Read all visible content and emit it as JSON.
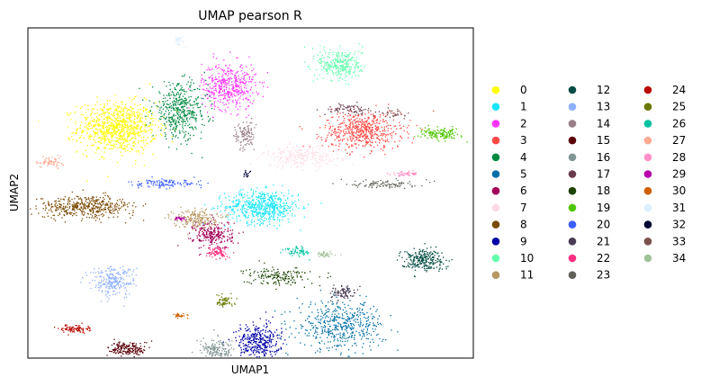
{
  "chart_data": {
    "type": "scatter",
    "title": "UMAP pearson R",
    "xlabel": "UMAP1",
    "ylabel": "UMAP2",
    "grid": false,
    "ticks": false,
    "legend_placement": "right",
    "legend_columns": 3,
    "xlim": [
      -10,
      10
    ],
    "ylim": [
      -10,
      10
    ],
    "clusters": [
      {
        "name": "0",
        "color": "#ffff00",
        "center": [
          -6.0,
          4.0
        ],
        "spread": [
          1.6,
          1.4
        ],
        "n": 900
      },
      {
        "name": "1",
        "color": "#1ce6ff",
        "center": [
          0.5,
          -0.8
        ],
        "spread": [
          1.5,
          0.9
        ],
        "n": 600
      },
      {
        "name": "2",
        "color": "#ff34ff",
        "center": [
          -1.0,
          6.5
        ],
        "spread": [
          1.1,
          1.3
        ],
        "n": 450
      },
      {
        "name": "3",
        "color": "#ff4a46",
        "center": [
          5.0,
          3.8
        ],
        "spread": [
          1.6,
          1.0
        ],
        "n": 550
      },
      {
        "name": "4",
        "color": "#008941",
        "center": [
          -3.2,
          5.0
        ],
        "spread": [
          1.1,
          1.5
        ],
        "n": 450
      },
      {
        "name": "5",
        "color": "#006fa6",
        "center": [
          4.0,
          -8.0
        ],
        "spread": [
          1.8,
          1.3
        ],
        "n": 500
      },
      {
        "name": "6",
        "color": "#a30059",
        "center": [
          -1.7,
          -2.5
        ],
        "spread": [
          0.8,
          0.8
        ],
        "n": 250
      },
      {
        "name": "7",
        "color": "#ffdbe5",
        "center": [
          2.3,
          2.2
        ],
        "spread": [
          1.6,
          0.6
        ],
        "n": 250
      },
      {
        "name": "8",
        "color": "#7a4900",
        "center": [
          -7.4,
          -0.8
        ],
        "spread": [
          2.0,
          0.6
        ],
        "n": 450
      },
      {
        "name": "9",
        "color": "#0000a6",
        "center": [
          0.3,
          -9.0
        ],
        "spread": [
          0.9,
          1.0
        ],
        "n": 350
      },
      {
        "name": "10",
        "color": "#63ffac",
        "center": [
          4.0,
          7.8
        ],
        "spread": [
          0.9,
          0.9
        ],
        "n": 300
      },
      {
        "name": "11",
        "color": "#b79762",
        "center": [
          -2.5,
          -1.5
        ],
        "spread": [
          0.9,
          0.5
        ],
        "n": 200
      },
      {
        "name": "12",
        "color": "#004d43",
        "center": [
          7.7,
          -4.0
        ],
        "spread": [
          0.9,
          0.6
        ],
        "n": 250
      },
      {
        "name": "13",
        "color": "#8fb0ff",
        "center": [
          -6.2,
          -5.3
        ],
        "spread": [
          0.9,
          0.8
        ],
        "n": 250
      },
      {
        "name": "14",
        "color": "#997d87",
        "center": [
          -0.3,
          3.5
        ],
        "spread": [
          0.4,
          0.8
        ],
        "n": 120
      },
      {
        "name": "15",
        "color": "#5a0007",
        "center": [
          -5.5,
          -9.4
        ],
        "spread": [
          0.8,
          0.4
        ],
        "n": 180
      },
      {
        "name": "16",
        "color": "#809693",
        "center": [
          -1.5,
          -9.5
        ],
        "spread": [
          0.7,
          0.6
        ],
        "n": 160
      },
      {
        "name": "17",
        "color": "#6a3a4c",
        "center": [
          4.4,
          5.1
        ],
        "spread": [
          1.0,
          0.3
        ],
        "n": 80
      },
      {
        "name": "18",
        "color": "#1b4400",
        "center": [
          1.2,
          -5.0
        ],
        "spread": [
          1.3,
          0.5
        ],
        "n": 160
      },
      {
        "name": "19",
        "color": "#4fc601",
        "center": [
          8.5,
          3.6
        ],
        "spread": [
          0.8,
          0.3
        ],
        "n": 150
      },
      {
        "name": "20",
        "color": "#3b5dff",
        "center": [
          -3.8,
          0.6
        ],
        "spread": [
          1.4,
          0.25
        ],
        "n": 120
      },
      {
        "name": "21",
        "color": "#4a3b53",
        "center": [
          4.1,
          -6.0
        ],
        "spread": [
          0.5,
          0.35
        ],
        "n": 90
      },
      {
        "name": "22",
        "color": "#ff2f80",
        "center": [
          -1.5,
          -3.6
        ],
        "spread": [
          0.4,
          0.3
        ],
        "n": 80
      },
      {
        "name": "23",
        "color": "#61615a",
        "center": [
          6.0,
          0.6
        ],
        "spread": [
          1.3,
          0.25
        ],
        "n": 100
      },
      {
        "name": "24",
        "color": "#ba0900",
        "center": [
          -7.9,
          -8.2
        ],
        "spread": [
          0.6,
          0.2
        ],
        "n": 90
      },
      {
        "name": "25",
        "color": "#6b7900",
        "center": [
          -1.2,
          -6.5
        ],
        "spread": [
          0.4,
          0.3
        ],
        "n": 60
      },
      {
        "name": "26",
        "color": "#00c2a0",
        "center": [
          2.1,
          -3.5
        ],
        "spread": [
          0.5,
          0.3
        ],
        "n": 60
      },
      {
        "name": "27",
        "color": "#ffaa92",
        "center": [
          -9.0,
          1.9
        ],
        "spread": [
          0.5,
          0.3
        ],
        "n": 70
      },
      {
        "name": "28",
        "color": "#ff90c9",
        "center": [
          7.0,
          1.2
        ],
        "spread": [
          0.6,
          0.12
        ],
        "n": 50
      },
      {
        "name": "29",
        "color": "#b903aa",
        "center": [
          -3.2,
          -1.5
        ],
        "spread": [
          0.3,
          0.12
        ],
        "n": 30
      },
      {
        "name": "30",
        "color": "#d16100",
        "center": [
          -3.2,
          -7.4
        ],
        "spread": [
          0.3,
          0.12
        ],
        "n": 30
      },
      {
        "name": "31",
        "color": "#ddefff",
        "center": [
          -3.2,
          9.3
        ],
        "spread": [
          0.2,
          0.3
        ],
        "n": 30
      },
      {
        "name": "32",
        "color": "#000035",
        "center": [
          -0.2,
          1.2
        ],
        "spread": [
          0.2,
          0.2
        ],
        "n": 15
      },
      {
        "name": "33",
        "color": "#7b4f4b",
        "center": [
          6.5,
          4.8
        ],
        "spread": [
          0.5,
          0.3
        ],
        "n": 30
      },
      {
        "name": "34",
        "color": "#a1c299",
        "center": [
          3.3,
          -3.7
        ],
        "spread": [
          0.5,
          0.15
        ],
        "n": 40
      }
    ]
  }
}
